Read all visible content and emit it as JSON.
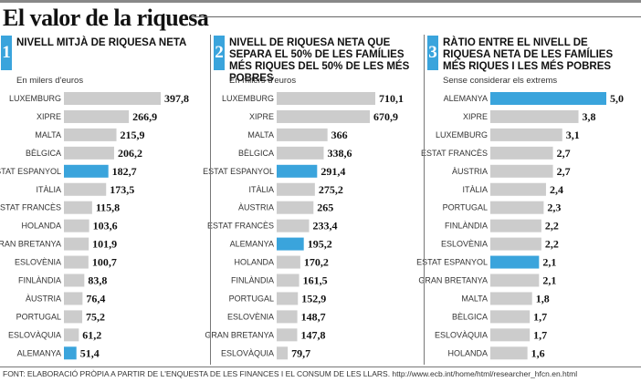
{
  "title": "El valor de la riquesa",
  "source": "FONT: ELABORACIÓ PRÒPIA A PARTIR DE L'ENQUESTA DE LES FINANCES I EL CONSUM DE LES LLARS. http://www.ecb.int/home/html/researcher_hfcn.en.html",
  "colors": {
    "bar": "#cccccc",
    "highlight": "#3aa4dc",
    "badge": "#3aa4dc"
  },
  "panels": [
    {
      "number": "1",
      "title": "NIVELL MITJÀ DE RIQUESA NETA",
      "subtitle": "En milers d'euros"
    },
    {
      "number": "2",
      "title": "NIVELL DE RIQUESA NETA QUE SEPARA EL 50% DE LES FAMÍLIES MÉS RIQUES DEL 50% DE LES MÉS POBRES",
      "subtitle": "En milers d'euros"
    },
    {
      "number": "3",
      "title": "RÀTIO ENTRE EL NIVELL DE RIQUESA NETA DE LES FAMÍLIES MÉS RIQUES I LES MÉS POBRES",
      "subtitle": "Sense considerar els extrems"
    }
  ],
  "chart_data": [
    {
      "type": "bar",
      "orientation": "horizontal",
      "highlight_color": "#3aa4dc",
      "highlight": [
        "ESTAT ESPANYOL",
        "ALEMANYA"
      ],
      "categories": [
        "LUXEMBURG",
        "XIPRE",
        "MALTA",
        "BÈLGICA",
        "ESTAT ESPANYOL",
        "ITÀLIA",
        "ESTAT FRANCÈS",
        "HOLANDA",
        "GRAN BRETANYA",
        "ESLOVÈNIA",
        "FINLÀNDIA",
        "ÀUSTRIA",
        "PORTUGAL",
        "ESLOVÀQUIA",
        "ALEMANYA"
      ],
      "values": [
        397.8,
        266.9,
        215.9,
        206.2,
        182.7,
        173.5,
        115.8,
        103.6,
        101.9,
        100.7,
        83.8,
        76.4,
        75.2,
        61.2,
        51.4
      ],
      "value_labels": [
        "397,8",
        "266,9",
        "215,9",
        "206,2",
        "182,7",
        "173,5",
        "115,8",
        "103,6",
        "101,9",
        "100,7",
        "83,8",
        "76,4",
        "75,2",
        "61,2",
        "51,4"
      ]
    },
    {
      "type": "bar",
      "orientation": "horizontal",
      "highlight_color": "#3aa4dc",
      "highlight": [
        "ESTAT ESPANYOL",
        "ALEMANYA"
      ],
      "categories": [
        "LUXEMBURG",
        "XIPRE",
        "MALTA",
        "BÈLGICA",
        "ESTAT ESPANYOL",
        "ITÀLIA",
        "ÀUSTRIA",
        "ESTAT FRANCÈS",
        "ALEMANYA",
        "HOLANDA",
        "FINLÀNDIA",
        "PORTUGAL",
        "ESLOVÈNIA",
        "GRAN BRETANYA",
        "ESLOVÀQUIA"
      ],
      "values": [
        710.1,
        670.9,
        366,
        338.6,
        291.4,
        275.2,
        265,
        233.4,
        195.2,
        170.2,
        161.5,
        152.9,
        148.7,
        147.8,
        79.7
      ],
      "value_labels": [
        "710,1",
        "670,9",
        "366",
        "338,6",
        "291,4",
        "275,2",
        "265",
        "233,4",
        "195,2",
        "170,2",
        "161,5",
        "152,9",
        "148,7",
        "147,8",
        "79,7"
      ]
    },
    {
      "type": "bar",
      "orientation": "horizontal",
      "highlight_color": "#3aa4dc",
      "highlight": [
        "ALEMANYA",
        "ESTAT ESPANYOL"
      ],
      "categories": [
        "ALEMANYA",
        "XIPRE",
        "LUXEMBURG",
        "ESTAT FRANCÈS",
        "ÀUSTRIA",
        "ITÀLIA",
        "PORTUGAL",
        "FINLÀNDIA",
        "ESLOVÈNIA",
        "ESTAT ESPANYOL",
        "GRAN BRETANYA",
        "MALTA",
        "BÈLGICA",
        "ESLOVÀQUIA",
        "HOLANDA"
      ],
      "values": [
        5.0,
        3.8,
        3.1,
        2.7,
        2.7,
        2.4,
        2.3,
        2.2,
        2.2,
        2.1,
        2.1,
        1.8,
        1.7,
        1.7,
        1.6
      ],
      "value_labels": [
        "5,0",
        "3,8",
        "3,1",
        "2,7",
        "2,7",
        "2,4",
        "2,3",
        "2,2",
        "2,2",
        "2,1",
        "2,1",
        "1,8",
        "1,7",
        "1,7",
        "1,6"
      ]
    }
  ]
}
